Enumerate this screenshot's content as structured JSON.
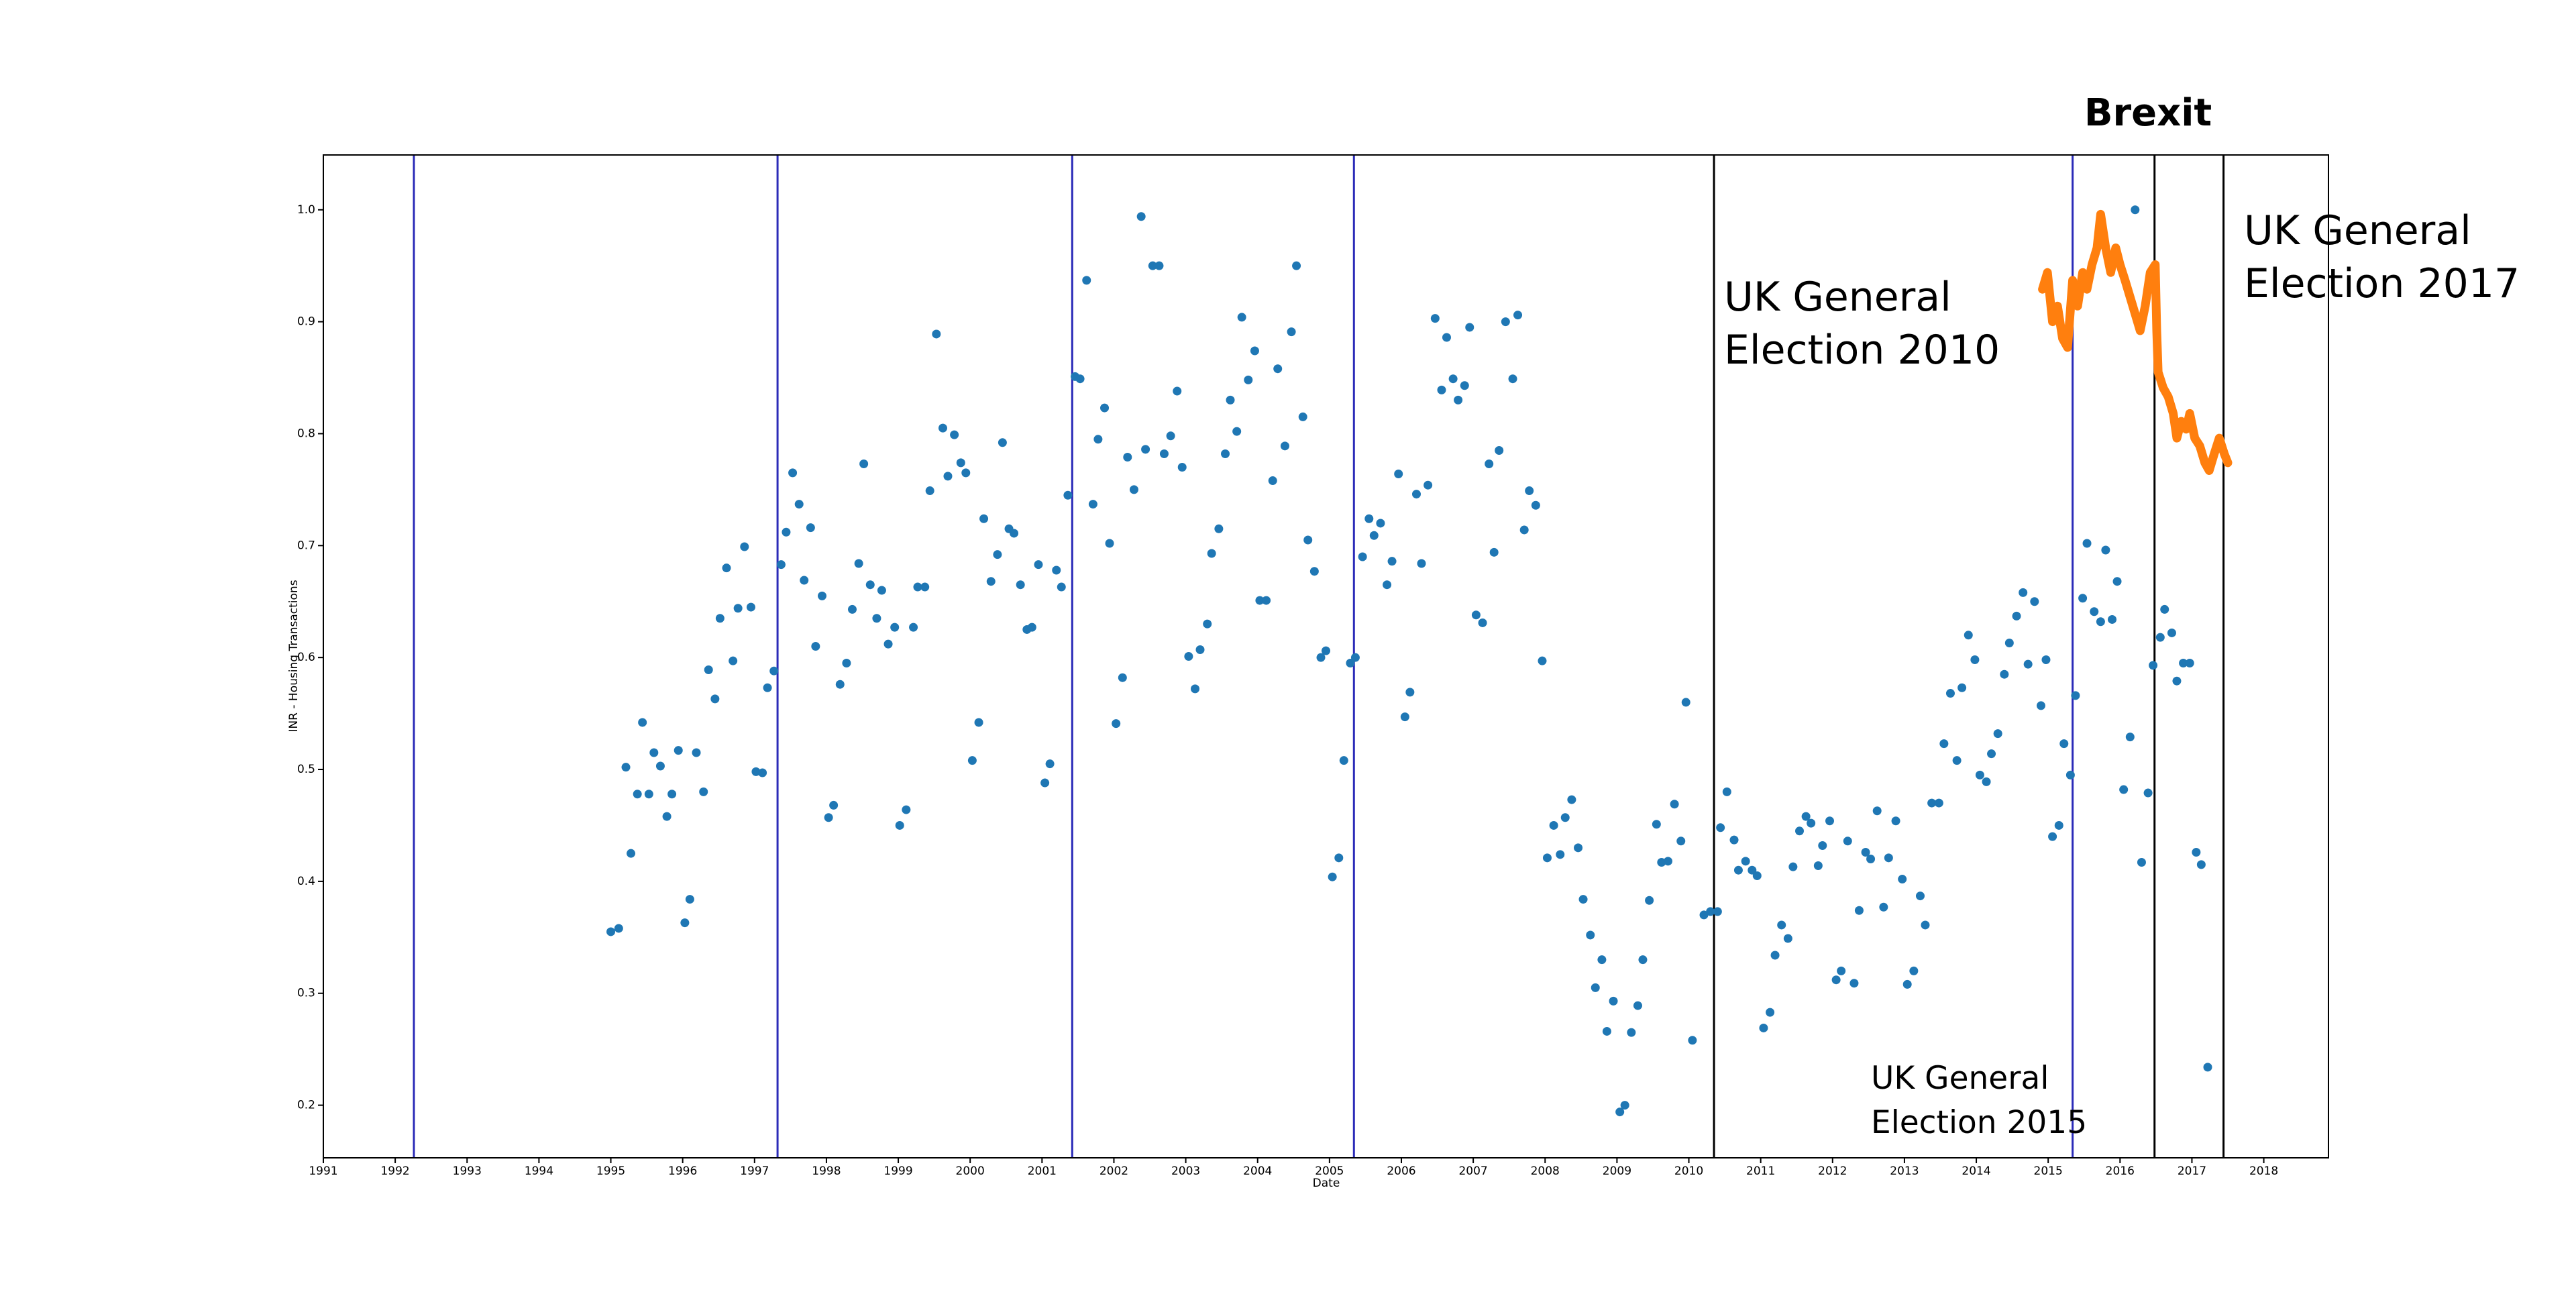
{
  "chart_data": {
    "type": "scatter",
    "title": "Brexit",
    "x_label": "Date",
    "y_label": "INR  -  Housing Transactions",
    "xlim": [
      1991,
      2018.9
    ],
    "ylim": [
      0.153,
      1.049
    ],
    "xticks": [
      1991,
      1992,
      1993,
      1994,
      1995,
      1996,
      1997,
      1998,
      1999,
      2000,
      2001,
      2002,
      2003,
      2004,
      2005,
      2006,
      2007,
      2008,
      2009,
      2010,
      2011,
      2012,
      2013,
      2014,
      2015,
      2016,
      2017,
      2018
    ],
    "yticks": [
      0.2,
      0.3,
      0.4,
      0.5,
      0.6,
      0.7,
      0.8,
      0.9,
      {
        "value": 1,
        "label": "1.0"
      }
    ],
    "vlines": [
      {
        "x": 1992.26,
        "color": "#2b2bb8"
      },
      {
        "x": 1997.32,
        "color": "#2b2bb8"
      },
      {
        "x": 2001.42,
        "color": "#2b2bb8"
      },
      {
        "x": 2005.34,
        "color": "#2b2bb8"
      },
      {
        "x": 2010.35,
        "color": "#000000"
      },
      {
        "x": 2015.34,
        "color": "#2b2bb8"
      },
      {
        "x": 2016.48,
        "color": "#000000"
      },
      {
        "x": 2017.44,
        "color": "#000000"
      }
    ],
    "annotations": [
      {
        "lines": [
          "UK General",
          "Election 2010"
        ]
      },
      {
        "lines": [
          "UK General",
          "Election 2015"
        ]
      },
      {
        "lines": [
          "UK General",
          "Election 2017"
        ]
      }
    ],
    "series": [
      {
        "type": "scatter",
        "color": "#1f77b4",
        "x": [
          1995.0,
          1995.11,
          1995.21,
          1995.28,
          1995.37,
          1995.44,
          1995.53,
          1995.6,
          1995.69,
          1995.78,
          1995.85,
          1995.94,
          1996.03,
          1996.1,
          1996.19,
          1996.29,
          1996.36,
          1996.45,
          1996.52,
          1996.61,
          1996.7,
          1996.77,
          1996.86,
          1996.95,
          1997.02,
          1997.11,
          1997.18,
          1997.27,
          1997.37,
          1997.44,
          1997.53,
          1997.62,
          1997.69,
          1997.78,
          1997.85,
          1997.94,
          1998.03,
          1998.1,
          1998.19,
          1998.28,
          1998.36,
          1998.45,
          1998.52,
          1998.61,
          1998.7,
          1998.77,
          1998.86,
          1998.95,
          1999.02,
          1999.11,
          1999.21,
          1999.27,
          1999.37,
          1999.44,
          1999.53,
          1999.62,
          1999.69,
          1999.78,
          1999.87,
          1999.94,
          2000.03,
          2000.12,
          2000.19,
          2000.29,
          2000.38,
          2000.45,
          2000.54,
          2000.61,
          2000.7,
          2000.79,
          2000.86,
          2000.95,
          2001.04,
          2001.11,
          2001.2,
          2001.27,
          2001.36,
          2001.46,
          2001.53,
          2001.62,
          2001.71,
          2001.78,
          2001.87,
          2001.94,
          2002.03,
          2002.12,
          2002.19,
          2002.28,
          2002.38,
          2002.44,
          2002.54,
          2002.63,
          2002.7,
          2002.79,
          2002.88,
          2002.95,
          2003.04,
          2003.13,
          2003.2,
          2003.3,
          2003.36,
          2003.46,
          2003.55,
          2003.62,
          2003.71,
          2003.78,
          2003.87,
          2003.96,
          2004.03,
          2004.12,
          2004.21,
          2004.28,
          2004.38,
          2004.47,
          2004.54,
          2004.63,
          2004.7,
          2004.79,
          2004.88,
          2004.95,
          2005.04,
          2005.13,
          2005.2,
          2005.29,
          2005.36,
          2005.46,
          2005.55,
          2005.62,
          2005.71,
          2005.8,
          2005.87,
          2005.96,
          2006.05,
          2006.12,
          2006.21,
          2006.28,
          2006.37,
          2006.47,
          2006.56,
          2006.63,
          2006.72,
          2006.79,
          2006.88,
          2006.95,
          2007.04,
          2007.13,
          2007.22,
          2007.29,
          2007.36,
          2007.45,
          2007.55,
          2007.62,
          2007.71,
          2007.78,
          2007.87,
          2007.96,
          2008.03,
          2008.12,
          2008.21,
          2008.28,
          2008.37,
          2008.46,
          2008.53,
          2008.63,
          2008.7,
          2008.79,
          2008.86,
          2008.95,
          2009.04,
          2009.11,
          2009.2,
          2009.29,
          2009.36,
          2009.45,
          2009.55,
          2009.62,
          2009.71,
          2009.8,
          2009.89,
          2009.96,
          2010.05,
          2010.21,
          2010.3,
          2010.4,
          2010.44,
          2010.53,
          2010.63,
          2010.69,
          2010.79,
          2010.88,
          2010.95,
          2011.04,
          2011.13,
          2011.2,
          2011.29,
          2011.38,
          2011.45,
          2011.54,
          2011.63,
          2011.7,
          2011.8,
          2011.86,
          2011.96,
          2012.05,
          2012.12,
          2012.21,
          2012.3,
          2012.37,
          2012.46,
          2012.53,
          2012.62,
          2012.71,
          2012.78,
          2012.88,
          2012.97,
          2013.04,
          2013.13,
          2013.22,
          2013.29,
          2013.38,
          2013.48,
          2013.55,
          2013.64,
          2013.73,
          2013.8,
          2013.89,
          2013.98,
          2014.05,
          2014.14,
          2014.21,
          2014.3,
          2014.39,
          2014.46,
          2014.56,
          2014.65,
          2014.72,
          2014.81,
          2014.9,
          2014.97,
          2015.06,
          2015.15,
          2015.22,
          2015.31,
          2015.38,
          2015.48,
          2015.54,
          2015.64,
          2015.73,
          2015.8,
          2015.89,
          2015.96,
          2016.05,
          2016.14,
          2016.21,
          2016.3,
          2016.39,
          2016.46,
          2016.56,
          2016.62,
          2016.72,
          2016.79,
          2016.88,
          2016.97,
          2017.06,
          2017.13,
          2017.22
        ],
        "values": [
          0.355,
          0.358,
          0.502,
          0.425,
          0.478,
          0.542,
          0.478,
          0.515,
          0.503,
          0.458,
          0.478,
          0.517,
          0.363,
          0.384,
          0.515,
          0.48,
          0.589,
          0.563,
          0.635,
          0.68,
          0.597,
          0.644,
          0.699,
          0.645,
          0.498,
          0.497,
          0.573,
          0.588,
          0.683,
          0.712,
          0.765,
          0.737,
          0.669,
          0.716,
          0.61,
          0.655,
          0.457,
          0.468,
          0.576,
          0.595,
          0.643,
          0.684,
          0.773,
          0.665,
          0.635,
          0.66,
          0.612,
          0.627,
          0.45,
          0.464,
          0.627,
          0.663,
          0.663,
          0.749,
          0.889,
          0.805,
          0.762,
          0.799,
          0.774,
          0.765,
          0.508,
          0.542,
          0.724,
          0.668,
          0.692,
          0.792,
          0.715,
          0.711,
          0.665,
          0.625,
          0.627,
          0.683,
          0.488,
          0.505,
          0.678,
          0.663,
          0.745,
          0.851,
          0.849,
          0.937,
          0.737,
          0.795,
          0.823,
          0.702,
          0.541,
          0.582,
          0.779,
          0.75,
          0.994,
          0.786,
          0.95,
          0.95,
          0.782,
          0.798,
          0.838,
          0.77,
          0.601,
          0.572,
          0.607,
          0.63,
          0.693,
          0.715,
          0.782,
          0.83,
          0.802,
          0.904,
          0.848,
          0.874,
          0.651,
          0.651,
          0.758,
          0.858,
          0.789,
          0.891,
          0.95,
          0.815,
          0.705,
          0.677,
          0.6,
          0.606,
          0.404,
          0.421,
          0.508,
          0.595,
          0.6,
          0.69,
          0.724,
          0.709,
          0.72,
          0.665,
          0.686,
          0.764,
          0.547,
          0.569,
          0.746,
          0.684,
          0.754,
          0.903,
          0.839,
          0.886,
          0.849,
          0.83,
          0.843,
          0.895,
          0.638,
          0.631,
          0.773,
          0.694,
          0.785,
          0.9,
          0.849,
          0.906,
          0.714,
          0.749,
          0.736,
          0.597,
          0.421,
          0.45,
          0.424,
          0.457,
          0.473,
          0.43,
          0.384,
          0.352,
          0.305,
          0.33,
          0.266,
          0.293,
          0.194,
          0.2,
          0.265,
          0.289,
          0.33,
          0.383,
          0.451,
          0.417,
          0.418,
          0.469,
          0.436,
          0.56,
          0.258,
          0.37,
          0.373,
          0.373,
          0.448,
          0.48,
          0.437,
          0.41,
          0.418,
          0.41,
          0.405,
          0.269,
          0.283,
          0.334,
          0.361,
          0.349,
          0.413,
          0.445,
          0.458,
          0.452,
          0.414,
          0.432,
          0.454,
          0.312,
          0.32,
          0.436,
          0.309,
          0.374,
          0.426,
          0.42,
          0.463,
          0.377,
          0.421,
          0.454,
          0.402,
          0.308,
          0.32,
          0.387,
          0.361,
          0.47,
          0.47,
          0.523,
          0.568,
          0.508,
          0.573,
          0.62,
          0.598,
          0.495,
          0.489,
          0.514,
          0.532,
          0.585,
          0.613,
          0.637,
          0.658,
          0.594,
          0.65,
          0.557,
          0.598,
          0.44,
          0.45,
          0.523,
          0.495,
          0.566,
          0.653,
          0.702,
          0.641,
          0.632,
          0.696,
          0.634,
          0.668,
          0.482,
          0.529,
          1.0,
          0.417,
          0.479,
          0.593,
          0.618,
          0.643,
          0.622,
          0.579,
          0.595,
          0.595,
          0.426,
          0.415,
          0.234
        ]
      },
      {
        "type": "line",
        "color": "#ff7f0e",
        "x": [
          2014.92,
          2014.99,
          2015.06,
          2015.13,
          2015.2,
          2015.27,
          2015.34,
          2015.41,
          2015.48,
          2015.54,
          2015.61,
          2015.68,
          2015.73,
          2015.8,
          2015.87,
          2015.94,
          2016.0,
          2016.07,
          2016.14,
          2016.21,
          2016.28,
          2016.35,
          2016.42,
          2016.49,
          2016.51,
          2016.53,
          2016.6,
          2016.67,
          2016.74,
          2016.79,
          2016.85,
          2016.92,
          2016.97,
          2017.04,
          2017.11,
          2017.18,
          2017.24,
          2017.31,
          2017.38,
          2017.45,
          2017.5
        ],
        "values": [
          0.929,
          0.944,
          0.9,
          0.914,
          0.885,
          0.877,
          0.937,
          0.914,
          0.944,
          0.929,
          0.951,
          0.966,
          0.996,
          0.966,
          0.944,
          0.966,
          0.951,
          0.937,
          0.922,
          0.907,
          0.892,
          0.914,
          0.944,
          0.951,
          0.892,
          0.855,
          0.841,
          0.833,
          0.818,
          0.796,
          0.811,
          0.804,
          0.818,
          0.796,
          0.789,
          0.774,
          0.767,
          0.782,
          0.796,
          0.782,
          0.774
        ]
      }
    ]
  }
}
